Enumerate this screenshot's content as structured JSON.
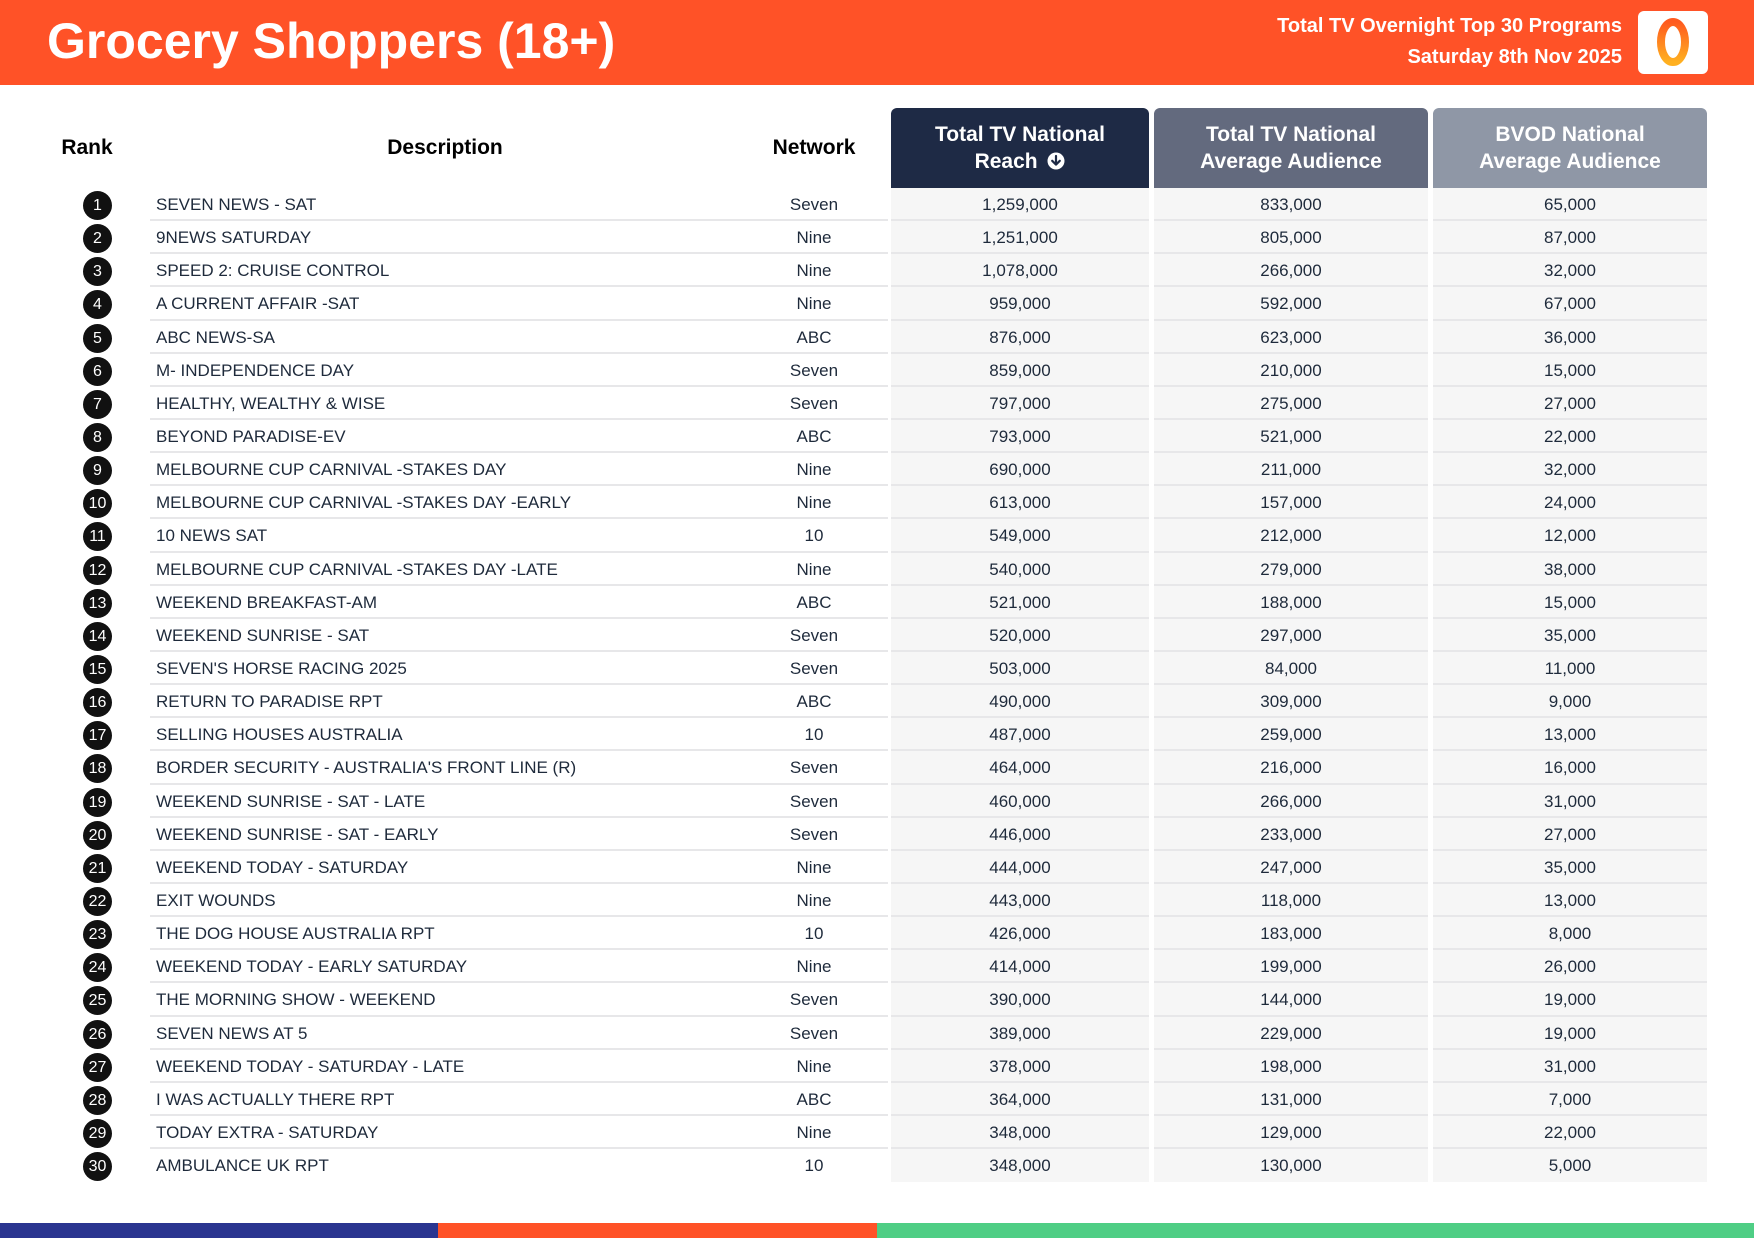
{
  "header": {
    "title": "Grocery Shoppers (18+)",
    "subtitle_line1": "Total TV Overnight Top 30 Programs",
    "subtitle_line2": "Saturday 8th Nov 2025",
    "logo_icon": "oztam-logo-icon",
    "brand_color": "#ff5227"
  },
  "table": {
    "headers": {
      "rank": "Rank",
      "description": "Description",
      "network": "Network",
      "reach_line1": "Total TV National",
      "reach_line2": "Reach",
      "avg_line1": "Total TV National",
      "avg_line2": "Average Audience",
      "bvod_line1": "BVOD National",
      "bvod_line2": "Average Audience"
    },
    "sort_icon": "arrow-down-circle-icon",
    "rows": [
      {
        "rank": "1",
        "description": "SEVEN NEWS - SAT",
        "network": "Seven",
        "reach": "1,259,000",
        "avg": "833,000",
        "bvod": "65,000"
      },
      {
        "rank": "2",
        "description": "9NEWS SATURDAY",
        "network": "Nine",
        "reach": "1,251,000",
        "avg": "805,000",
        "bvod": "87,000"
      },
      {
        "rank": "3",
        "description": "SPEED 2: CRUISE CONTROL",
        "network": "Nine",
        "reach": "1,078,000",
        "avg": "266,000",
        "bvod": "32,000"
      },
      {
        "rank": "4",
        "description": "A CURRENT AFFAIR -SAT",
        "network": "Nine",
        "reach": "959,000",
        "avg": "592,000",
        "bvod": "67,000"
      },
      {
        "rank": "5",
        "description": "ABC NEWS-SA",
        "network": "ABC",
        "reach": "876,000",
        "avg": "623,000",
        "bvod": "36,000"
      },
      {
        "rank": "6",
        "description": "M- INDEPENDENCE DAY",
        "network": "Seven",
        "reach": "859,000",
        "avg": "210,000",
        "bvod": "15,000"
      },
      {
        "rank": "7",
        "description": "HEALTHY, WEALTHY & WISE",
        "network": "Seven",
        "reach": "797,000",
        "avg": "275,000",
        "bvod": "27,000"
      },
      {
        "rank": "8",
        "description": "BEYOND PARADISE-EV",
        "network": "ABC",
        "reach": "793,000",
        "avg": "521,000",
        "bvod": "22,000"
      },
      {
        "rank": "9",
        "description": "MELBOURNE CUP CARNIVAL -STAKES DAY",
        "network": "Nine",
        "reach": "690,000",
        "avg": "211,000",
        "bvod": "32,000"
      },
      {
        "rank": "10",
        "description": "MELBOURNE CUP CARNIVAL -STAKES DAY -EARLY",
        "network": "Nine",
        "reach": "613,000",
        "avg": "157,000",
        "bvod": "24,000"
      },
      {
        "rank": "11",
        "description": "10 NEWS SAT",
        "network": "10",
        "reach": "549,000",
        "avg": "212,000",
        "bvod": "12,000"
      },
      {
        "rank": "12",
        "description": "MELBOURNE CUP CARNIVAL -STAKES DAY -LATE",
        "network": "Nine",
        "reach": "540,000",
        "avg": "279,000",
        "bvod": "38,000"
      },
      {
        "rank": "13",
        "description": "WEEKEND BREAKFAST-AM",
        "network": "ABC",
        "reach": "521,000",
        "avg": "188,000",
        "bvod": "15,000"
      },
      {
        "rank": "14",
        "description": "WEEKEND SUNRISE - SAT",
        "network": "Seven",
        "reach": "520,000",
        "avg": "297,000",
        "bvod": "35,000"
      },
      {
        "rank": "15",
        "description": "SEVEN'S HORSE RACING 2025",
        "network": "Seven",
        "reach": "503,000",
        "avg": "84,000",
        "bvod": "11,000"
      },
      {
        "rank": "16",
        "description": "RETURN TO PARADISE RPT",
        "network": "ABC",
        "reach": "490,000",
        "avg": "309,000",
        "bvod": "9,000"
      },
      {
        "rank": "17",
        "description": "SELLING HOUSES AUSTRALIA",
        "network": "10",
        "reach": "487,000",
        "avg": "259,000",
        "bvod": "13,000"
      },
      {
        "rank": "18",
        "description": "BORDER SECURITY - AUSTRALIA'S FRONT LINE (R)",
        "network": "Seven",
        "reach": "464,000",
        "avg": "216,000",
        "bvod": "16,000"
      },
      {
        "rank": "19",
        "description": "WEEKEND SUNRISE - SAT - LATE",
        "network": "Seven",
        "reach": "460,000",
        "avg": "266,000",
        "bvod": "31,000"
      },
      {
        "rank": "20",
        "description": "WEEKEND SUNRISE - SAT - EARLY",
        "network": "Seven",
        "reach": "446,000",
        "avg": "233,000",
        "bvod": "27,000"
      },
      {
        "rank": "21",
        "description": "WEEKEND TODAY - SATURDAY",
        "network": "Nine",
        "reach": "444,000",
        "avg": "247,000",
        "bvod": "35,000"
      },
      {
        "rank": "22",
        "description": "EXIT WOUNDS",
        "network": "Nine",
        "reach": "443,000",
        "avg": "118,000",
        "bvod": "13,000"
      },
      {
        "rank": "23",
        "description": "THE DOG HOUSE AUSTRALIA RPT",
        "network": "10",
        "reach": "426,000",
        "avg": "183,000",
        "bvod": "8,000"
      },
      {
        "rank": "24",
        "description": "WEEKEND TODAY - EARLY SATURDAY",
        "network": "Nine",
        "reach": "414,000",
        "avg": "199,000",
        "bvod": "26,000"
      },
      {
        "rank": "25",
        "description": "THE MORNING SHOW - WEEKEND",
        "network": "Seven",
        "reach": "390,000",
        "avg": "144,000",
        "bvod": "19,000"
      },
      {
        "rank": "26",
        "description": "SEVEN NEWS AT 5",
        "network": "Seven",
        "reach": "389,000",
        "avg": "229,000",
        "bvod": "19,000"
      },
      {
        "rank": "27",
        "description": "WEEKEND TODAY - SATURDAY - LATE",
        "network": "Nine",
        "reach": "378,000",
        "avg": "198,000",
        "bvod": "31,000"
      },
      {
        "rank": "28",
        "description": "I WAS ACTUALLY THERE RPT",
        "network": "ABC",
        "reach": "364,000",
        "avg": "131,000",
        "bvod": "7,000"
      },
      {
        "rank": "29",
        "description": "TODAY EXTRA - SATURDAY",
        "network": "Nine",
        "reach": "348,000",
        "avg": "129,000",
        "bvod": "22,000"
      },
      {
        "rank": "30",
        "description": "AMBULANCE UK RPT",
        "network": "10",
        "reach": "348,000",
        "avg": "130,000",
        "bvod": "5,000"
      }
    ]
  },
  "footer": {
    "colors": [
      "#2a3590",
      "#ff5227",
      "#4fce85"
    ]
  }
}
